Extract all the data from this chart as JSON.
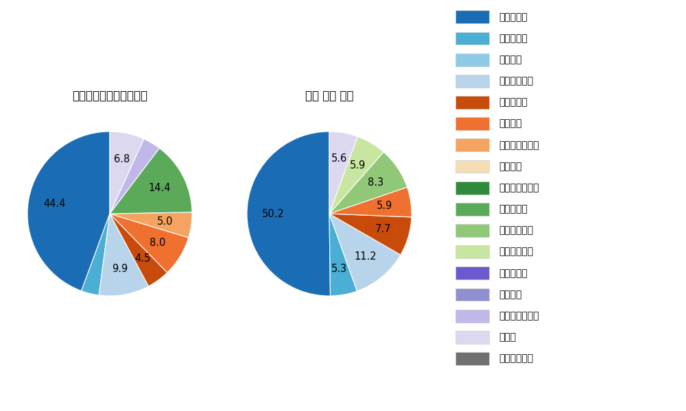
{
  "left_title": "パ・リーグ全プレイヤー",
  "right_title": "角中 勝也 選手",
  "left_slices": [
    {
      "label": "ストレート",
      "value": 44.4,
      "color": "#1a6db5"
    },
    {
      "label": "ツーシーム",
      "value": 3.5,
      "color": "#4aaed5"
    },
    {
      "label": "シュート",
      "value": 0.0,
      "color": "#8ecae6"
    },
    {
      "label": "カットボール",
      "value": 9.9,
      "color": "#b8d4ea"
    },
    {
      "label": "スプリット",
      "value": 4.5,
      "color": "#c94b0c"
    },
    {
      "label": "フォーク",
      "value": 8.0,
      "color": "#f07030"
    },
    {
      "label": "チェンジアップ",
      "value": 5.0,
      "color": "#f4a460"
    },
    {
      "label": "シンカー",
      "value": 0.0,
      "color": "#f5deb3"
    },
    {
      "label": "高速スライダー",
      "value": 0.0,
      "color": "#2e8b3a"
    },
    {
      "label": "スライダー",
      "value": 14.4,
      "color": "#5aaa5a"
    },
    {
      "label": "縦スライダー",
      "value": 0.0,
      "color": "#90c878"
    },
    {
      "label": "パワーカーブ",
      "value": 0.0,
      "color": "#c8e6a0"
    },
    {
      "label": "スクリュー",
      "value": 0.0,
      "color": "#6a5acd"
    },
    {
      "label": "ナックル",
      "value": 0.0,
      "color": "#9090d0"
    },
    {
      "label": "ナックルカーブ",
      "value": 3.5,
      "color": "#c0b8e8"
    },
    {
      "label": "カーブ",
      "value": 6.8,
      "color": "#dcd8f0"
    },
    {
      "label": "スローカーブ",
      "value": 0.0,
      "color": "#707070"
    }
  ],
  "right_slices": [
    {
      "label": "ストレート",
      "value": 50.3,
      "color": "#1a6db5"
    },
    {
      "label": "ツーシーム",
      "value": 5.3,
      "color": "#4aaed5"
    },
    {
      "label": "シュート",
      "value": 0.0,
      "color": "#8ecae6"
    },
    {
      "label": "カットボール",
      "value": 11.2,
      "color": "#b8d4ea"
    },
    {
      "label": "スプリット",
      "value": 7.7,
      "color": "#c94b0c"
    },
    {
      "label": "フォーク",
      "value": 5.9,
      "color": "#f07030"
    },
    {
      "label": "チェンジアップ",
      "value": 0.0,
      "color": "#f4a460"
    },
    {
      "label": "シンカー",
      "value": 0.0,
      "color": "#f5deb3"
    },
    {
      "label": "高速スライダー",
      "value": 0.0,
      "color": "#2e8b3a"
    },
    {
      "label": "スライダー",
      "value": 0.0,
      "color": "#5aaa5a"
    },
    {
      "label": "縦スライダー",
      "value": 8.3,
      "color": "#90c878"
    },
    {
      "label": "パワーカーブ",
      "value": 5.9,
      "color": "#c8e6a0"
    },
    {
      "label": "スクリュー",
      "value": 0.0,
      "color": "#6a5acd"
    },
    {
      "label": "ナックル",
      "value": 0.0,
      "color": "#9090d0"
    },
    {
      "label": "ナックルカーブ",
      "value": 0.0,
      "color": "#c0b8e8"
    },
    {
      "label": "カーブ",
      "value": 5.6,
      "color": "#dcd8f0"
    },
    {
      "label": "スローカーブ",
      "value": 0.0,
      "color": "#707070"
    }
  ],
  "legend_labels": [
    "ストレート",
    "ツーシーム",
    "シュート",
    "カットボール",
    "スプリット",
    "フォーク",
    "チェンジアップ",
    "シンカー",
    "高速スライダー",
    "スライダー",
    "縦スライダー",
    "パワーカーブ",
    "スクリュー",
    "ナックル",
    "ナックルカーブ",
    "カーブ",
    "スローカーブ"
  ],
  "legend_colors": [
    "#1a6db5",
    "#4aaed5",
    "#8ecae6",
    "#b8d4ea",
    "#c94b0c",
    "#f07030",
    "#f4a460",
    "#f5deb3",
    "#2e8b3a",
    "#5aaa5a",
    "#90c878",
    "#c8e6a0",
    "#6a5acd",
    "#9090d0",
    "#c0b8e8",
    "#dcd8f0",
    "#707070"
  ],
  "background_color": "#ffffff"
}
